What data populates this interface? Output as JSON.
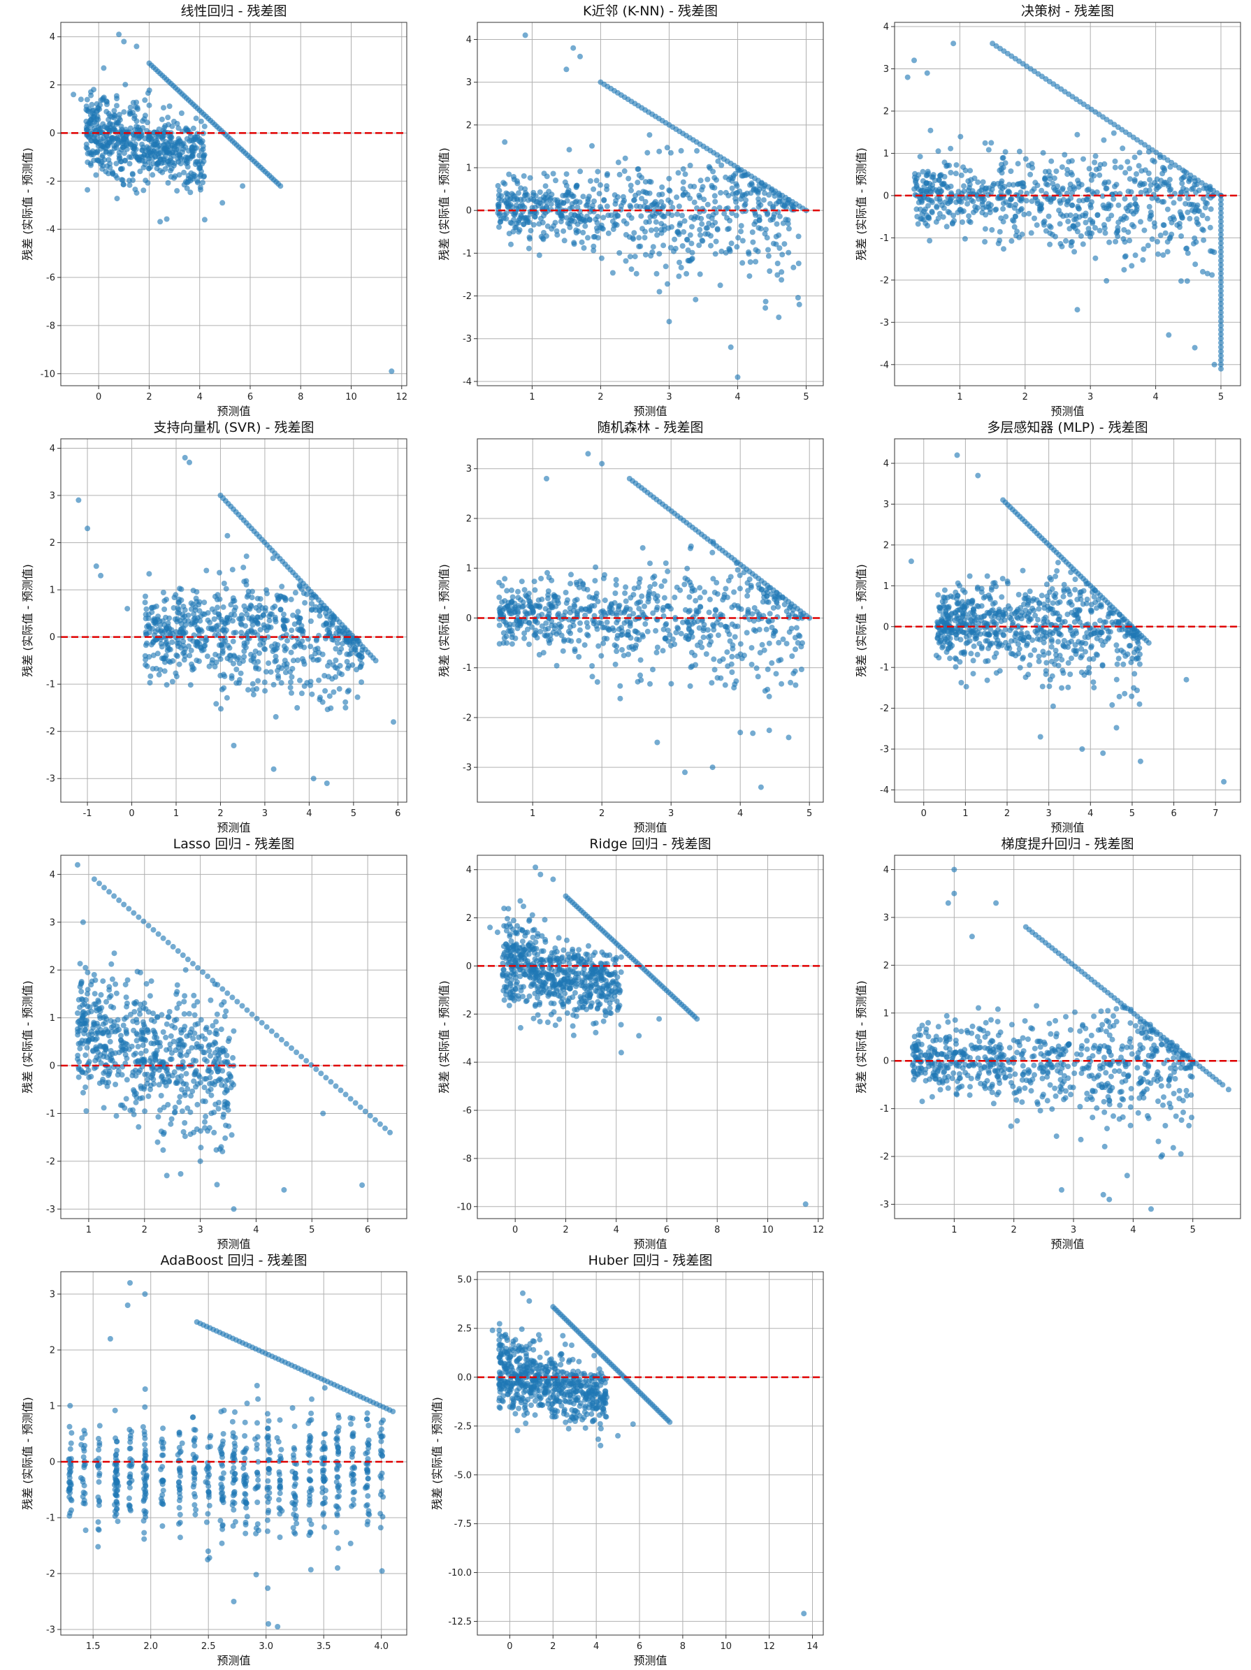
{
  "figure": {
    "axis_color": "#333333",
    "grid_color": "#b0b0b0",
    "point_color": "#1f77b4",
    "zero_line_color": "#e00000"
  },
  "chart_data": [
    {
      "type": "scatter",
      "title": "线性回归 - 残差图",
      "xlabel": "预测值",
      "ylabel": "残差 (实际值 - 预测值)",
      "xlim": [
        -1.5,
        12.2
      ],
      "ylim": [
        -10.5,
        4.6
      ],
      "xticks": [
        0,
        2,
        4,
        6,
        8,
        10,
        12
      ],
      "yticks": [
        -10,
        -8,
        -6,
        -4,
        -2,
        0,
        2,
        4
      ],
      "tick_labels_x": [
        "0",
        "2",
        "4",
        "6",
        "8",
        "10",
        "12"
      ],
      "tick_labels_y": [
        "-10",
        "-8",
        "-6",
        "-4",
        "-2",
        "0",
        "2",
        "4"
      ],
      "grid": true,
      "zero_line": 0,
      "cloud": {
        "x": [
          -0.5,
          4.2
        ],
        "y_min": [
          -1.5,
          -2.2
        ],
        "y_max": [
          1.8,
          0.1
        ],
        "count": 600
      },
      "cap_line": {
        "x": [
          2.0,
          7.2
        ],
        "y": [
          2.9,
          -2.2
        ]
      },
      "points": [
        {
          "x": 0.8,
          "y": 4.1
        },
        {
          "x": 1.0,
          "y": 3.8
        },
        {
          "x": 1.5,
          "y": 3.6
        },
        {
          "x": -1.0,
          "y": 1.6
        },
        {
          "x": -0.7,
          "y": 1.4
        },
        {
          "x": 0.2,
          "y": 2.7
        },
        {
          "x": 4.2,
          "y": -3.6
        },
        {
          "x": 4.9,
          "y": -2.9
        },
        {
          "x": 3.1,
          "y": -2.4
        },
        {
          "x": 11.6,
          "y": -9.9
        },
        {
          "x": 5.7,
          "y": -2.2
        },
        {
          "x": 3.5,
          "y": -2.3
        }
      ]
    },
    {
      "type": "scatter",
      "title": "K近邻 (K-NN) - 残差图",
      "xlabel": "预测值",
      "ylabel": "残差 (实际值 - 预测值)",
      "xlim": [
        0.2,
        5.25
      ],
      "ylim": [
        -4.1,
        4.4
      ],
      "xticks": [
        1,
        2,
        3,
        4,
        5
      ],
      "yticks": [
        -4,
        -3,
        -2,
        -1,
        0,
        1,
        2,
        3,
        4
      ],
      "tick_labels_x": [
        "1",
        "2",
        "3",
        "4",
        "5"
      ],
      "tick_labels_y": [
        "-4",
        "-3",
        "-2",
        "-1",
        "0",
        "1",
        "2",
        "3",
        "4"
      ],
      "grid": true,
      "zero_line": 0,
      "cloud": {
        "x": [
          0.5,
          4.9
        ],
        "y_min": [
          -0.5,
          -1.8
        ],
        "y_max": [
          0.6,
          1.6
        ],
        "count": 700
      },
      "cap_line": {
        "x": [
          2.0,
          5.0
        ],
        "y": [
          3.0,
          0.0
        ]
      },
      "points": [
        {
          "x": 0.9,
          "y": 4.1
        },
        {
          "x": 1.6,
          "y": 3.8
        },
        {
          "x": 1.7,
          "y": 3.6
        },
        {
          "x": 1.5,
          "y": 3.3
        },
        {
          "x": 4.0,
          "y": -3.9
        },
        {
          "x": 3.9,
          "y": -3.2
        },
        {
          "x": 3.0,
          "y": -2.6
        },
        {
          "x": 4.9,
          "y": -2.2
        },
        {
          "x": 4.6,
          "y": -2.5
        },
        {
          "x": 0.6,
          "y": 1.6
        }
      ]
    },
    {
      "type": "scatter",
      "title": "决策树 - 残差图",
      "xlabel": "预测值",
      "ylabel": "残差 (实际值 - 预测值)",
      "xlim": [
        0.0,
        5.3
      ],
      "ylim": [
        -4.5,
        4.1
      ],
      "xticks": [
        1,
        2,
        3,
        4,
        5
      ],
      "yticks": [
        -4,
        -3,
        -2,
        -1,
        0,
        1,
        2,
        3,
        4
      ],
      "tick_labels_x": [
        "1",
        "2",
        "3",
        "4",
        "5"
      ],
      "tick_labels_y": [
        "-4",
        "-3",
        "-2",
        "-1",
        "0",
        "1",
        "2",
        "3",
        "4"
      ],
      "grid": true,
      "zero_line": 0,
      "cloud": {
        "x": [
          0.3,
          4.9
        ],
        "y_min": [
          -0.6,
          -1.8
        ],
        "y_max": [
          0.7,
          1.3
        ],
        "count": 700
      },
      "cap_line": {
        "x": [
          1.5,
          5.0
        ],
        "y": [
          3.6,
          0.0
        ]
      },
      "vline": {
        "x": 5.0,
        "y": [
          0.0,
          -4.1
        ]
      },
      "points": [
        {
          "x": 0.9,
          "y": 3.6
        },
        {
          "x": 0.3,
          "y": 3.2
        },
        {
          "x": 0.2,
          "y": 2.8
        },
        {
          "x": 4.9,
          "y": -4.0
        },
        {
          "x": 4.6,
          "y": -3.6
        },
        {
          "x": 4.2,
          "y": -3.3
        },
        {
          "x": 0.5,
          "y": 2.9
        },
        {
          "x": 2.8,
          "y": -2.7
        }
      ]
    },
    {
      "type": "scatter",
      "title": "支持向量机 (SVR) - 残差图",
      "xlabel": "预测值",
      "ylabel": "残差 (实际值 - 预测值)",
      "xlim": [
        -1.6,
        6.2
      ],
      "ylim": [
        -3.5,
        4.2
      ],
      "xticks": [
        -1,
        0,
        1,
        2,
        3,
        4,
        5,
        6
      ],
      "yticks": [
        -3,
        -2,
        -1,
        0,
        1,
        2,
        3,
        4
      ],
      "tick_labels_x": [
        "-1",
        "0",
        "1",
        "2",
        "3",
        "4",
        "5",
        "6"
      ],
      "tick_labels_y": [
        "-3",
        "-2",
        "-1",
        "0",
        "1",
        "2",
        "3",
        "4"
      ],
      "grid": true,
      "zero_line": 0,
      "cloud": {
        "x": [
          0.3,
          5.2
        ],
        "y_min": [
          -0.7,
          -1.5
        ],
        "y_max": [
          0.9,
          1.3
        ],
        "count": 700
      },
      "cap_line": {
        "x": [
          2.0,
          5.5
        ],
        "y": [
          3.0,
          -0.5
        ]
      },
      "points": [
        {
          "x": -1.2,
          "y": 2.9
        },
        {
          "x": -1.0,
          "y": 2.3
        },
        {
          "x": -0.8,
          "y": 1.5
        },
        {
          "x": -0.7,
          "y": 1.3
        },
        {
          "x": -0.1,
          "y": 0.6
        },
        {
          "x": 1.2,
          "y": 3.8
        },
        {
          "x": 1.3,
          "y": 3.7
        },
        {
          "x": 4.1,
          "y": -3.0
        },
        {
          "x": 4.4,
          "y": -3.1
        },
        {
          "x": 3.2,
          "y": -2.8
        },
        {
          "x": 5.9,
          "y": -1.8
        },
        {
          "x": 2.3,
          "y": -2.3
        }
      ]
    },
    {
      "type": "scatter",
      "title": "随机森林 - 残差图",
      "xlabel": "预测值",
      "ylabel": "残差 (实际值 - 预测值)",
      "xlim": [
        0.2,
        5.2
      ],
      "ylim": [
        -3.7,
        3.6
      ],
      "xticks": [
        1,
        2,
        3,
        4,
        5
      ],
      "yticks": [
        -3,
        -2,
        -1,
        0,
        1,
        2,
        3
      ],
      "tick_labels_x": [
        "1",
        "2",
        "3",
        "4",
        "5"
      ],
      "tick_labels_y": [
        "-3",
        "-2",
        "-1",
        "0",
        "1",
        "2",
        "3"
      ],
      "grid": true,
      "zero_line": 0,
      "cloud": {
        "x": [
          0.5,
          4.9
        ],
        "y_min": [
          -0.5,
          -1.6
        ],
        "y_max": [
          0.6,
          1.4
        ],
        "count": 700
      },
      "cap_line": {
        "x": [
          2.4,
          5.0
        ],
        "y": [
          2.8,
          0.0
        ]
      },
      "points": [
        {
          "x": 1.8,
          "y": 3.3
        },
        {
          "x": 2.0,
          "y": 3.1
        },
        {
          "x": 1.2,
          "y": 2.8
        },
        {
          "x": 4.3,
          "y": -3.4
        },
        {
          "x": 3.2,
          "y": -3.1
        },
        {
          "x": 3.6,
          "y": -3.0
        },
        {
          "x": 4.7,
          "y": -2.4
        },
        {
          "x": 4.0,
          "y": -2.3
        },
        {
          "x": 2.8,
          "y": -2.5
        }
      ]
    },
    {
      "type": "scatter",
      "title": "多层感知器 (MLP) - 残差图",
      "xlabel": "预测值",
      "ylabel": "残差 (实际值 - 预测值)",
      "xlim": [
        -0.7,
        7.6
      ],
      "ylim": [
        -4.3,
        4.6
      ],
      "xticks": [
        0,
        1,
        2,
        3,
        4,
        5,
        6,
        7
      ],
      "yticks": [
        -4,
        -3,
        -2,
        -1,
        0,
        1,
        2,
        3,
        4
      ],
      "tick_labels_x": [
        "0",
        "1",
        "2",
        "3",
        "4",
        "5",
        "6",
        "7"
      ],
      "tick_labels_y": [
        "-4",
        "-3",
        "-2",
        "-1",
        "0",
        "1",
        "2",
        "3",
        "4"
      ],
      "grid": true,
      "zero_line": 0,
      "cloud": {
        "x": [
          0.3,
          5.2
        ],
        "y_min": [
          -0.6,
          -1.6
        ],
        "y_max": [
          0.8,
          1.4
        ],
        "count": 700
      },
      "cap_line": {
        "x": [
          1.9,
          5.4
        ],
        "y": [
          3.1,
          -0.4
        ]
      },
      "points": [
        {
          "x": 0.8,
          "y": 4.2
        },
        {
          "x": 1.3,
          "y": 3.7
        },
        {
          "x": -0.3,
          "y": 1.6
        },
        {
          "x": 7.2,
          "y": -3.8
        },
        {
          "x": 5.2,
          "y": -3.3
        },
        {
          "x": 4.3,
          "y": -3.1
        },
        {
          "x": 3.8,
          "y": -3.0
        },
        {
          "x": 6.3,
          "y": -1.3
        },
        {
          "x": 2.8,
          "y": -2.7
        }
      ]
    },
    {
      "type": "scatter",
      "title": "Lasso 回归 - 残差图",
      "xlabel": "预测值",
      "ylabel": "残差 (实际值 - 预测值)",
      "xlim": [
        0.5,
        6.7
      ],
      "ylim": [
        -3.2,
        4.4
      ],
      "xticks": [
        1,
        2,
        3,
        4,
        5,
        6
      ],
      "yticks": [
        -3,
        -2,
        -1,
        0,
        1,
        2,
        3,
        4
      ],
      "tick_labels_x": [
        "1",
        "2",
        "3",
        "4",
        "5",
        "6"
      ],
      "tick_labels_y": [
        "-3",
        "-2",
        "-1",
        "0",
        "1",
        "2",
        "3",
        "4"
      ],
      "grid": true,
      "zero_line": 0,
      "cloud": {
        "x": [
          0.8,
          3.6
        ],
        "y_min": [
          -0.5,
          -1.6
        ],
        "y_max": [
          2.0,
          1.0
        ],
        "count": 650
      },
      "cap_line": {
        "x": [
          1.1,
          6.4
        ],
        "y": [
          3.9,
          -1.4
        ]
      },
      "points": [
        {
          "x": 0.8,
          "y": 4.2
        },
        {
          "x": 0.9,
          "y": 3.0
        },
        {
          "x": 3.6,
          "y": -3.0
        },
        {
          "x": 4.5,
          "y": -2.6
        },
        {
          "x": 5.9,
          "y": -2.5
        },
        {
          "x": 3.0,
          "y": -2.0
        },
        {
          "x": 5.2,
          "y": -1.0
        },
        {
          "x": 2.4,
          "y": -2.3
        }
      ]
    },
    {
      "type": "scatter",
      "title": "Ridge 回归 - 残差图",
      "xlabel": "预测值",
      "ylabel": "残差 (实际值 - 预测值)",
      "xlim": [
        -1.5,
        12.2
      ],
      "ylim": [
        -10.5,
        4.6
      ],
      "xticks": [
        0,
        2,
        4,
        6,
        8,
        10,
        12
      ],
      "yticks": [
        -10,
        -8,
        -6,
        -4,
        -2,
        0,
        2,
        4
      ],
      "tick_labels_x": [
        "0",
        "2",
        "4",
        "6",
        "8",
        "10",
        "12"
      ],
      "tick_labels_y": [
        "-10",
        "-8",
        "-6",
        "-4",
        "-2",
        "0",
        "2",
        "4"
      ],
      "grid": true,
      "zero_line": 0,
      "cloud": {
        "x": [
          -0.5,
          4.2
        ],
        "y_min": [
          -1.5,
          -2.2
        ],
        "y_max": [
          1.8,
          0.1
        ],
        "count": 600
      },
      "cap_line": {
        "x": [
          2.0,
          7.2
        ],
        "y": [
          2.9,
          -2.2
        ]
      },
      "points": [
        {
          "x": 0.8,
          "y": 4.1
        },
        {
          "x": 1.0,
          "y": 3.8
        },
        {
          "x": 1.5,
          "y": 3.6
        },
        {
          "x": -1.0,
          "y": 1.6
        },
        {
          "x": -0.7,
          "y": 1.4
        },
        {
          "x": 0.2,
          "y": 2.7
        },
        {
          "x": 4.2,
          "y": -3.6
        },
        {
          "x": 4.9,
          "y": -2.9
        },
        {
          "x": 3.1,
          "y": -2.4
        },
        {
          "x": 11.5,
          "y": -9.9
        },
        {
          "x": 5.7,
          "y": -2.2
        },
        {
          "x": 3.5,
          "y": -2.3
        }
      ]
    },
    {
      "type": "scatter",
      "title": "梯度提升回归 - 残差图",
      "xlabel": "预测值",
      "ylabel": "残差 (实际值 - 预测值)",
      "xlim": [
        0.0,
        5.8
      ],
      "ylim": [
        -3.3,
        4.3
      ],
      "xticks": [
        1,
        2,
        3,
        4,
        5
      ],
      "yticks": [
        -3,
        -2,
        -1,
        0,
        1,
        2,
        3,
        4
      ],
      "tick_labels_x": [
        "1",
        "2",
        "3",
        "4",
        "5"
      ],
      "tick_labels_y": [
        "-3",
        "-2",
        "-1",
        "0",
        "1",
        "2",
        "3",
        "4"
      ],
      "grid": true,
      "zero_line": 0,
      "cloud": {
        "x": [
          0.3,
          5.0
        ],
        "y_min": [
          -0.5,
          -1.5
        ],
        "y_max": [
          0.6,
          1.2
        ],
        "count": 700
      },
      "cap_line": {
        "x": [
          2.2,
          5.5
        ],
        "y": [
          2.8,
          -0.5
        ]
      },
      "points": [
        {
          "x": 1.0,
          "y": 4.0
        },
        {
          "x": 1.0,
          "y": 3.5
        },
        {
          "x": 0.9,
          "y": 3.3
        },
        {
          "x": 1.3,
          "y": 2.6
        },
        {
          "x": 1.7,
          "y": 3.3
        },
        {
          "x": 4.3,
          "y": -3.1
        },
        {
          "x": 3.5,
          "y": -2.8
        },
        {
          "x": 3.6,
          "y": -2.9
        },
        {
          "x": 3.9,
          "y": -2.4
        },
        {
          "x": 2.8,
          "y": -2.7
        },
        {
          "x": 5.6,
          "y": -0.6
        }
      ]
    },
    {
      "type": "scatter",
      "title": "AdaBoost 回归 - 残差图",
      "xlabel": "预测值",
      "ylabel": "残差 (实际值 - 预测值)",
      "xlim": [
        1.22,
        4.22
      ],
      "ylim": [
        -3.1,
        3.4
      ],
      "xticks": [
        1.5,
        2.0,
        2.5,
        3.0,
        3.5,
        4.0
      ],
      "yticks": [
        -3,
        -2,
        -1,
        0,
        1,
        2,
        3
      ],
      "tick_labels_x": [
        "1.5",
        "2.0",
        "2.5",
        "3.0",
        "3.5",
        "4.0"
      ],
      "tick_labels_y": [
        "-3",
        "-2",
        "-1",
        "0",
        "1",
        "2",
        "3"
      ],
      "grid": true,
      "zero_line": 0,
      "columns": [
        1.3,
        1.42,
        1.55,
        1.7,
        1.82,
        1.95,
        2.1,
        2.25,
        2.38,
        2.5,
        2.62,
        2.72,
        2.82,
        2.92,
        3.02,
        3.12,
        3.25,
        3.38,
        3.5,
        3.62,
        3.75,
        3.88,
        4.0
      ],
      "cloud": {
        "x": [
          1.3,
          4.05
        ],
        "y_min": [
          -1.2,
          -1.3
        ],
        "y_max": [
          0.6,
          1.0
        ],
        "count": 700
      },
      "cap_line": {
        "x": [
          2.4,
          4.1
        ],
        "y": [
          2.5,
          0.9
        ]
      },
      "points": [
        {
          "x": 1.82,
          "y": 3.2
        },
        {
          "x": 1.95,
          "y": 3.0
        },
        {
          "x": 1.65,
          "y": 2.2
        },
        {
          "x": 3.02,
          "y": -2.9
        },
        {
          "x": 3.1,
          "y": -2.95
        },
        {
          "x": 2.72,
          "y": -2.5
        },
        {
          "x": 1.8,
          "y": 2.8
        },
        {
          "x": 3.62,
          "y": -1.9
        }
      ]
    },
    {
      "type": "scatter",
      "title": "Huber 回归 - 残差图",
      "xlabel": "预测值",
      "ylabel": "残差 (实际值 - 预测值)",
      "xlim": [
        -1.5,
        14.5
      ],
      "ylim": [
        -13.2,
        5.4
      ],
      "xticks": [
        0,
        2,
        4,
        6,
        8,
        10,
        12,
        14
      ],
      "yticks": [
        -12.5,
        -10.0,
        -7.5,
        -5.0,
        -2.5,
        0.0,
        2.5,
        5.0
      ],
      "tick_labels_x": [
        "0",
        "2",
        "4",
        "6",
        "8",
        "10",
        "12",
        "14"
      ],
      "tick_labels_y": [
        "-12.5",
        "-10.0",
        "-7.5",
        "-5.0",
        "-2.5",
        "0.0",
        "2.5",
        "5.0"
      ],
      "grid": true,
      "zero_line": 0,
      "cloud": {
        "x": [
          -0.5,
          4.5
        ],
        "y_min": [
          -1.5,
          -2.4
        ],
        "y_max": [
          2.2,
          0.3
        ],
        "count": 600
      },
      "cap_line": {
        "x": [
          2.0,
          7.4
        ],
        "y": [
          3.6,
          -2.3
        ]
      },
      "points": [
        {
          "x": 0.6,
          "y": 4.3
        },
        {
          "x": 0.9,
          "y": 3.9
        },
        {
          "x": -0.8,
          "y": 2.4
        },
        {
          "x": 4.2,
          "y": -3.5
        },
        {
          "x": 5.0,
          "y": -3.0
        },
        {
          "x": 3.5,
          "y": -2.6
        },
        {
          "x": 13.6,
          "y": -12.1
        },
        {
          "x": 5.7,
          "y": -2.4
        }
      ]
    }
  ]
}
